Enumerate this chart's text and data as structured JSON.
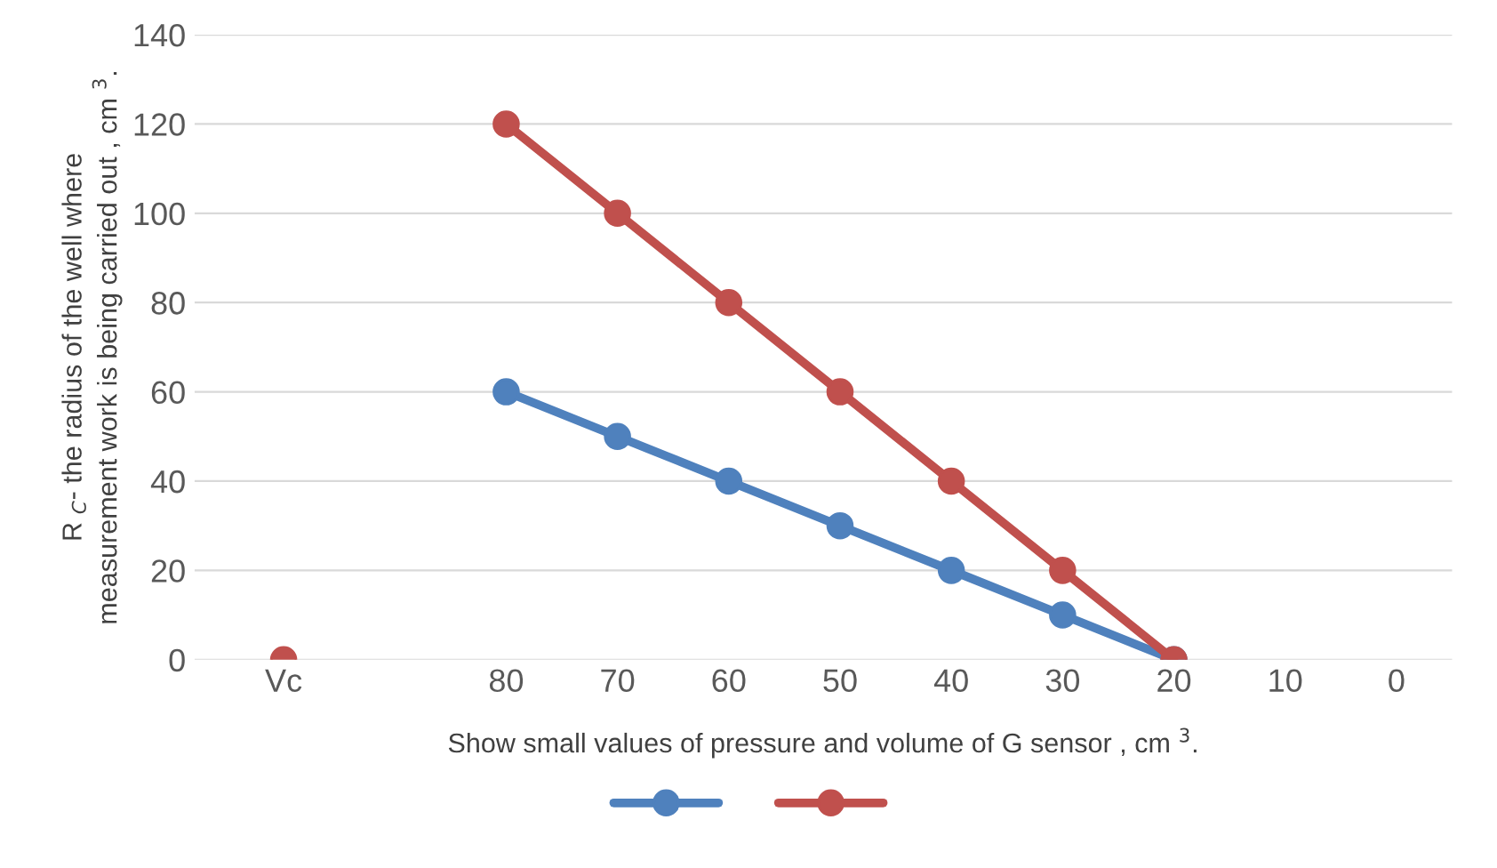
{
  "chart_data": {
    "type": "line",
    "xlabel": "Show small values of pressure and volume of G sensor , cm $^{3}$.",
    "ylabel": "R $_{C}$- the radius of the well where\nmeasurement work is being carried out , cm $^{3}$.",
    "categories": [
      "Vc",
      null,
      "80",
      "70",
      "60",
      "50",
      "40",
      "30",
      "20",
      "10",
      "0"
    ],
    "series": [
      {
        "color": "#4f81bd",
        "values": [
          null,
          null,
          60,
          50,
          40,
          30,
          20,
          10,
          0,
          null,
          null
        ]
      },
      {
        "color": "#c0504d",
        "values": [
          0,
          null,
          120,
          100,
          80,
          60,
          40,
          20,
          0,
          null,
          null
        ]
      }
    ],
    "ylim": [
      0,
      140
    ],
    "yticks": [
      0,
      20,
      40,
      60,
      80,
      100,
      120,
      140
    ],
    "grid": "y",
    "marker": "circle",
    "line_style": "solid"
  }
}
